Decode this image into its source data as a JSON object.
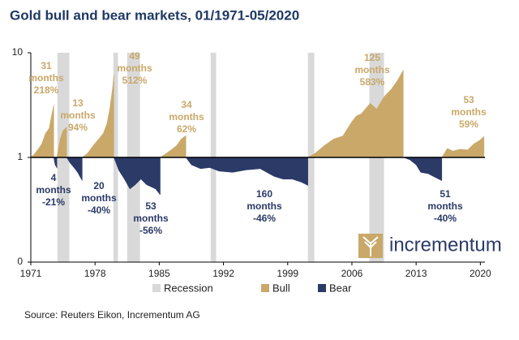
{
  "chart_data": {
    "type": "area",
    "title": "Gold bull and bear markets, 01/1971-05/2020",
    "source": "Source: Reuters Eikon, Incrementum AG",
    "logo": "incrementum",
    "log_scale": true,
    "baseline": 1,
    "xlim": [
      1971,
      2020.5
    ],
    "xticks": [
      1971,
      1978,
      1985,
      1992,
      1999,
      2006,
      2013,
      2020
    ],
    "ylim": [
      0.1,
      10
    ],
    "yticks": [
      {
        "value": 0.1,
        "label": "0"
      },
      1,
      10
    ],
    "recessions": {
      "name": "Recession",
      "color": "#d9d9d9",
      "ranges": [
        [
          1973.9,
          1975.2
        ],
        [
          1980.0,
          1980.5
        ],
        [
          1981.5,
          1982.9
        ],
        [
          1990.6,
          1991.2
        ],
        [
          2001.2,
          2001.9
        ],
        [
          2007.9,
          2009.5
        ]
      ]
    },
    "series": [
      {
        "name": "Bull",
        "color": "#c9a869",
        "x": [
          1971.0,
          1971.4,
          1971.8,
          1972.2,
          1972.6,
          1973.0,
          1973.3,
          1973.5,
          null,
          1973.85,
          1974.2,
          1974.5,
          1974.9,
          null,
          1976.6,
          1977.2,
          1977.8,
          1978.4,
          1978.9,
          1979.3,
          1979.6,
          1979.9,
          1980.05,
          null,
          1985.1,
          1985.8,
          1986.4,
          1986.9,
          1987.4,
          1987.9,
          null,
          2001.2,
          2002,
          2003,
          2004,
          2005,
          2006,
          2006.5,
          2007,
          2008,
          2008.7,
          2009.5,
          2010.3,
          2011,
          2011.6,
          null,
          2015.8,
          2016.4,
          2017,
          2017.8,
          2018.6,
          2019.3,
          2019.9,
          2020.4
        ],
        "values": [
          1,
          1.08,
          1.2,
          1.35,
          1.7,
          1.9,
          2.6,
          3.18,
          null,
          1,
          1.5,
          1.8,
          1.94,
          null,
          1,
          1.1,
          1.3,
          1.5,
          1.7,
          2.1,
          2.9,
          4.5,
          6.12,
          null,
          1,
          1.1,
          1.2,
          1.3,
          1.5,
          1.62,
          null,
          1,
          1.1,
          1.3,
          1.5,
          1.6,
          2.2,
          2.5,
          2.6,
          3.3,
          2.9,
          3.8,
          4.5,
          5.5,
          6.83,
          null,
          1,
          1.22,
          1.15,
          1.2,
          1.18,
          1.35,
          1.45,
          1.59
        ]
      },
      {
        "name": "Bear",
        "color": "#2b3a67",
        "x": [
          1973.5,
          1973.65,
          1973.85,
          null,
          1974.9,
          1975.3,
          1975.7,
          1976.1,
          1976.6,
          null,
          1980.05,
          1980.6,
          1981.2,
          1981.8,
          1982.4,
          1983.0,
          1983.6,
          1984.6,
          1985.1,
          null,
          1987.9,
          1988.5,
          1989.5,
          1990.5,
          1991.5,
          1993,
          1994.5,
          1996,
          1997.5,
          1998.5,
          1999.5,
          2000.5,
          2001.2,
          null,
          2011.6,
          2012.3,
          2013.0,
          2013.5,
          2014.3,
          2015.0,
          2015.8
        ],
        "values": [
          1,
          0.85,
          0.79,
          null,
          1,
          0.88,
          0.8,
          0.72,
          0.6,
          null,
          1,
          0.75,
          0.62,
          0.5,
          0.55,
          0.62,
          0.55,
          0.5,
          0.44,
          null,
          1,
          0.85,
          0.78,
          0.8,
          0.74,
          0.72,
          0.76,
          0.78,
          0.66,
          0.62,
          0.62,
          0.58,
          0.54,
          null,
          1,
          0.95,
          0.85,
          0.72,
          0.7,
          0.65,
          0.6
        ]
      }
    ],
    "annotations": [
      {
        "lines": [
          "31",
          "months",
          "218%"
        ],
        "series": "Bull"
      },
      {
        "lines": [
          "4",
          "months",
          "-21%"
        ],
        "series": "Bear"
      },
      {
        "lines": [
          "13",
          "months",
          "94%"
        ],
        "series": "Bull"
      },
      {
        "lines": [
          "20",
          "months",
          "-40%"
        ],
        "series": "Bear"
      },
      {
        "lines": [
          "49",
          "months",
          "512%"
        ],
        "series": "Bull"
      },
      {
        "lines": [
          "53",
          "months",
          "-56%"
        ],
        "series": "Bear"
      },
      {
        "lines": [
          "34",
          "months",
          "62%"
        ],
        "series": "Bull"
      },
      {
        "lines": [
          "160",
          "months",
          "-46%"
        ],
        "series": "Bear"
      },
      {
        "lines": [
          "125",
          "months",
          "583%"
        ],
        "series": "Bull"
      },
      {
        "lines": [
          "51",
          "months",
          "-40%"
        ],
        "series": "Bear"
      },
      {
        "lines": [
          "53",
          "months",
          "59%"
        ],
        "series": "Bull"
      }
    ]
  }
}
